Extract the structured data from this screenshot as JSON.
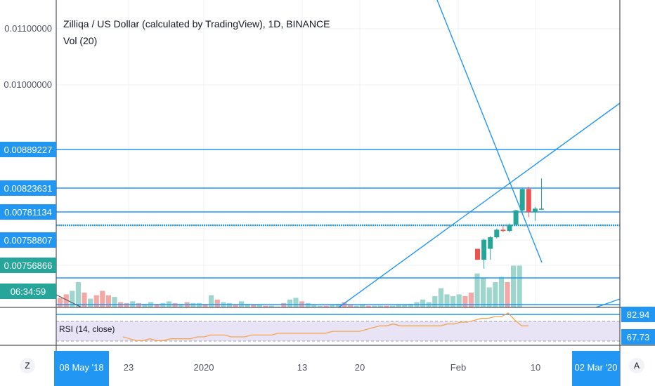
{
  "header": {
    "symbol_title": "Zilliqa / US Dollar (calculated by TradingView), 1D, BINANCE",
    "volume_label": "Vol (20)"
  },
  "rsi": {
    "label": "RSI (14, close)",
    "badges": [
      "82.94",
      "67.73"
    ]
  },
  "bottom_bar": {
    "left_button": "Z",
    "right_button": "A",
    "date_badge_left": "08 May '18",
    "date_badge_right": "02 Mar '20"
  },
  "countdown": "06:34:59",
  "colors": {
    "up": "#26a69a",
    "down": "#ef5350",
    "up_vol": "#9ed6ce",
    "down_vol": "#f4a8a6",
    "line": "#2196f3",
    "badge": "#2196f3",
    "countdown_bg": "#26a69a",
    "rsi_line": "#f3a64f",
    "rsi_band": "#e9e3f6"
  },
  "chart_data": {
    "type": "candlestick",
    "price_axis_labels": [
      "0.01100000",
      "0.01000000"
    ],
    "price_badges": [
      "0.00889227",
      "0.00823631",
      "0.00781134",
      "0.00758807",
      "0.00756866"
    ],
    "x_tick_labels": [
      "23",
      "2020",
      "13",
      "20",
      "Feb",
      "10"
    ],
    "horizontal_levels": [
      0.00889227,
      0.00823631,
      0.00781134,
      0.00763,
      0.007565
    ],
    "candles": [
      {
        "date": "2020-02-03",
        "open": 0.00758,
        "high": 0.00758,
        "low": 0.00757,
        "close": 0.00757
      },
      {
        "date": "2020-02-04",
        "open": 0.00757,
        "high": 0.0076,
        "low": 0.00756,
        "close": 0.00759
      },
      {
        "date": "2020-02-05",
        "open": 0.00758,
        "high": 0.00762,
        "low": 0.00757,
        "close": 0.00761
      },
      {
        "date": "2020-02-06",
        "open": 0.00761,
        "high": 0.00768,
        "low": 0.0076,
        "close": 0.00767
      },
      {
        "date": "2020-02-07",
        "open": 0.00767,
        "high": 0.0077,
        "low": 0.00765,
        "close": 0.00766
      },
      {
        "date": "2020-02-08",
        "open": 0.00766,
        "high": 0.00772,
        "low": 0.00765,
        "close": 0.00771
      },
      {
        "date": "2020-02-09",
        "open": 0.00771,
        "high": 0.00785,
        "low": 0.0077,
        "close": 0.00784
      },
      {
        "date": "2020-02-10",
        "open": 0.00784,
        "high": 0.00823,
        "low": 0.00782,
        "close": 0.00822
      },
      {
        "date": "2020-02-11",
        "open": 0.00822,
        "high": 0.00826,
        "low": 0.00777,
        "close": 0.00781
      },
      {
        "date": "2020-02-12",
        "open": 0.00781,
        "high": 0.0079,
        "low": 0.00774,
        "close": 0.00787
      },
      {
        "date": "2020-02-13",
        "open": 0.00787,
        "high": 0.0084,
        "low": 0.00786,
        "close": 0.00787
      }
    ],
    "volume": [
      {
        "dir": "down",
        "v": 22
      },
      {
        "dir": "down",
        "v": 30
      },
      {
        "dir": "up",
        "v": 38
      },
      {
        "dir": "up",
        "v": 58
      },
      {
        "dir": "down",
        "v": 34
      },
      {
        "dir": "up",
        "v": 20
      },
      {
        "dir": "down",
        "v": 28
      },
      {
        "dir": "down",
        "v": 38
      },
      {
        "dir": "down",
        "v": 28
      },
      {
        "dir": "up",
        "v": 24
      },
      {
        "dir": "down",
        "v": 12
      },
      {
        "dir": "down",
        "v": 10
      },
      {
        "dir": "up",
        "v": 14
      },
      {
        "dir": "down",
        "v": 10
      },
      {
        "dir": "up",
        "v": 8
      },
      {
        "dir": "up",
        "v": 12
      },
      {
        "dir": "down",
        "v": 8
      },
      {
        "dir": "up",
        "v": 10
      },
      {
        "dir": "up",
        "v": 14
      },
      {
        "dir": "down",
        "v": 10
      },
      {
        "dir": "up",
        "v": 8
      },
      {
        "dir": "down",
        "v": 12
      },
      {
        "dir": "up",
        "v": 10
      },
      {
        "dir": "up",
        "v": 10
      },
      {
        "dir": "down",
        "v": 8
      },
      {
        "dir": "up",
        "v": 28
      },
      {
        "dir": "down",
        "v": 18
      },
      {
        "dir": "up",
        "v": 12
      },
      {
        "dir": "up",
        "v": 10
      },
      {
        "dir": "down",
        "v": 6
      },
      {
        "dir": "up",
        "v": 14
      },
      {
        "dir": "up",
        "v": 8
      },
      {
        "dir": "down",
        "v": 6
      },
      {
        "dir": "up",
        "v": 6
      },
      {
        "dir": "down",
        "v": 4
      },
      {
        "dir": "up",
        "v": 4
      },
      {
        "dir": "up",
        "v": 2
      },
      {
        "dir": "down",
        "v": 10
      },
      {
        "dir": "up",
        "v": 18
      },
      {
        "dir": "up",
        "v": 22
      },
      {
        "dir": "down",
        "v": 14
      },
      {
        "dir": "up",
        "v": 10
      },
      {
        "dir": "up",
        "v": 6
      },
      {
        "dir": "up",
        "v": 4
      },
      {
        "dir": "down",
        "v": 4
      },
      {
        "dir": "up",
        "v": 6
      },
      {
        "dir": "up",
        "v": 8
      },
      {
        "dir": "down",
        "v": 12
      },
      {
        "dir": "down",
        "v": 6
      },
      {
        "dir": "up",
        "v": 4
      },
      {
        "dir": "up",
        "v": 6
      },
      {
        "dir": "down",
        "v": 4
      },
      {
        "dir": "up",
        "v": 4
      },
      {
        "dir": "up",
        "v": 4
      },
      {
        "dir": "down",
        "v": 4
      },
      {
        "dir": "up",
        "v": 4
      },
      {
        "dir": "up",
        "v": 6
      },
      {
        "dir": "up",
        "v": 6
      },
      {
        "dir": "up",
        "v": 8
      },
      {
        "dir": "up",
        "v": 12
      },
      {
        "dir": "up",
        "v": 18
      },
      {
        "dir": "up",
        "v": 12
      },
      {
        "dir": "up",
        "v": 26
      },
      {
        "dir": "up",
        "v": 44
      },
      {
        "dir": "up",
        "v": 30
      },
      {
        "dir": "up",
        "v": 26
      },
      {
        "dir": "up",
        "v": 30
      },
      {
        "dir": "down",
        "v": 26
      },
      {
        "dir": "down",
        "v": 34
      },
      {
        "dir": "up",
        "v": 78
      },
      {
        "dir": "up",
        "v": 68
      },
      {
        "dir": "up",
        "v": 46
      },
      {
        "dir": "up",
        "v": 58
      },
      {
        "dir": "up",
        "v": 70
      },
      {
        "dir": "down",
        "v": 58
      },
      {
        "dir": "up",
        "v": 96
      },
      {
        "dir": "up",
        "v": 96
      }
    ],
    "rsi_values": [
      70,
      69,
      68,
      68,
      69,
      68,
      68,
      69,
      69,
      69,
      69,
      70,
      70,
      71,
      71,
      71,
      70,
      70,
      70,
      71,
      71,
      71,
      71,
      72,
      72,
      72,
      72,
      72,
      72,
      72,
      72,
      73,
      73,
      73,
      73,
      73,
      74,
      75,
      76,
      76,
      77,
      76,
      76,
      76,
      76,
      76,
      76,
      76,
      77,
      77,
      78,
      78,
      79,
      80,
      80,
      81,
      81,
      83,
      79,
      76,
      76
    ]
  }
}
